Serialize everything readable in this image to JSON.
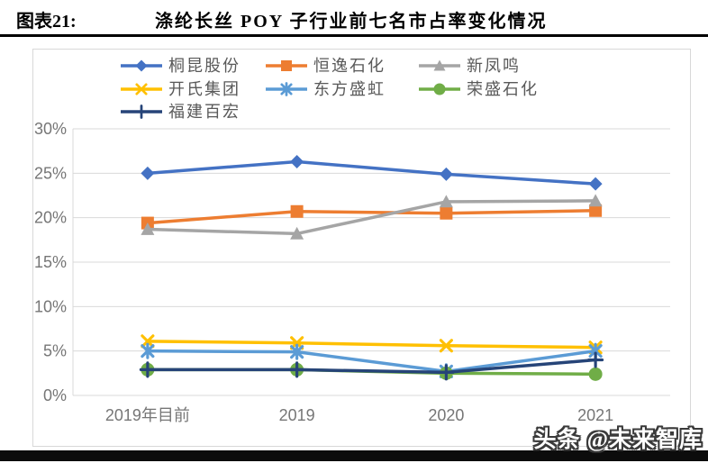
{
  "header": {
    "figure_label": "图表21:",
    "title": "涤纶长丝 POY 子行业前七名市占率变化情况"
  },
  "footer": {
    "watermark": "头条 @未来智库"
  },
  "chart_data": {
    "type": "line",
    "title": "涤纶长丝 POY 子行业前七名市占率变化情况",
    "categories": [
      "2019年目前",
      "2019",
      "2020",
      "2021"
    ],
    "series": [
      {
        "name": "桐昆股份",
        "color": "#4472C4",
        "marker": "diamond",
        "values": [
          25.0,
          26.3,
          24.9,
          23.8
        ]
      },
      {
        "name": "恒逸石化",
        "color": "#ED7D31",
        "marker": "square",
        "values": [
          19.4,
          20.7,
          20.5,
          20.8
        ]
      },
      {
        "name": "新凤鸣",
        "color": "#A5A5A5",
        "marker": "triangle",
        "values": [
          18.7,
          18.2,
          21.8,
          21.9
        ]
      },
      {
        "name": "开氏集团",
        "color": "#FFC000",
        "marker": "x",
        "values": [
          6.1,
          5.9,
          5.6,
          5.4
        ]
      },
      {
        "name": "东方盛虹",
        "color": "#5B9BD5",
        "marker": "asterisk",
        "values": [
          5.0,
          4.9,
          2.7,
          5.0
        ]
      },
      {
        "name": "荣盛石化",
        "color": "#70AD47",
        "marker": "circle",
        "values": [
          2.9,
          2.9,
          2.5,
          2.4
        ]
      },
      {
        "name": "福建百宏",
        "color": "#264478",
        "marker": "plus",
        "values": [
          2.9,
          2.9,
          2.6,
          4.0
        ]
      }
    ],
    "xlabel": "",
    "ylabel": "",
    "ylim": [
      0,
      30
    ],
    "ytick_step": 5,
    "ytick_labels": [
      "0%",
      "5%",
      "10%",
      "15%",
      "20%",
      "25%",
      "30%"
    ],
    "grid": true,
    "gridline_color": "#D9D9D9",
    "tick_label_color": "#767676",
    "legend_position": "top-left"
  }
}
